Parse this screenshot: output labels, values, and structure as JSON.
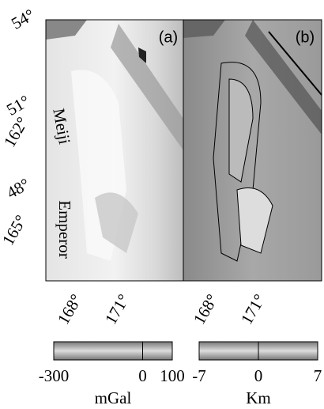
{
  "panels": [
    {
      "label": "(a)"
    },
    {
      "label": "(b)"
    }
  ],
  "lat_labels": [
    "54°",
    "51°",
    "48°"
  ],
  "lon_left_labels": [
    "162°",
    "165°"
  ],
  "lon_bottom_labels": [
    [
      "168°",
      "171°"
    ],
    [
      "168°",
      "171°"
    ]
  ],
  "features": [
    "Meiji",
    "Emperor"
  ],
  "colorbars": [
    {
      "ticks": [
        -300,
        0,
        100
      ],
      "unit": "mGal"
    },
    {
      "ticks": [
        -7,
        0,
        7
      ],
      "unit": "Km"
    }
  ]
}
